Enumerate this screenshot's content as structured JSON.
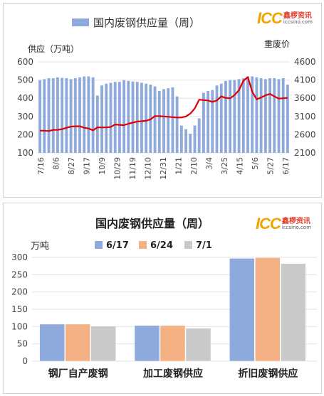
{
  "chart_data": [
    {
      "type": "bar+line",
      "legend": {
        "bar_label": "国内废钢供应量（周）",
        "position": "top"
      },
      "left_axis_title": "供应（万吨）",
      "right_axis_title": "重废价",
      "left_ticks": [
        "100",
        "200",
        "300",
        "400",
        "500",
        "600"
      ],
      "right_ticks": [
        "2100",
        "2600",
        "3100",
        "3600",
        "4100",
        "4600"
      ],
      "ylim_left": [
        100,
        600
      ],
      "ylim_right": [
        2100,
        4600
      ],
      "x_tick_labels": [
        "7/16",
        "8/6",
        "8/27",
        "9/17",
        "10/9",
        "10/29",
        "11/19",
        "12/10",
        "12/31",
        "1/21",
        "2/10",
        "3/4",
        "3/25",
        "4/15",
        "5/6",
        "5/27",
        "6/17"
      ],
      "bar_color": "#8ea9db",
      "line_color": "#e00000",
      "bar_values": [
        500,
        505,
        510,
        510,
        515,
        512,
        510,
        505,
        510,
        515,
        520,
        520,
        515,
        415,
        470,
        480,
        485,
        490,
        490,
        500,
        495,
        492,
        490,
        485,
        480,
        475,
        465,
        440,
        450,
        455,
        460,
        410,
        250,
        230,
        205,
        250,
        290,
        430,
        440,
        445,
        470,
        480,
        495,
        500,
        500,
        505,
        510,
        520,
        520,
        515,
        510,
        505,
        510,
        510,
        505,
        510,
        475
      ],
      "line_values": [
        2710,
        2710,
        2700,
        2730,
        2730,
        2750,
        2790,
        2820,
        2830,
        2830,
        2790,
        2770,
        2720,
        2800,
        2800,
        2800,
        2810,
        2880,
        2870,
        2860,
        2900,
        2930,
        2960,
        2970,
        2980,
        3020,
        3110,
        3110,
        3100,
        3090,
        3080,
        3070,
        3070,
        3100,
        3180,
        3320,
        3560,
        3550,
        3540,
        3500,
        3540,
        3650,
        3610,
        3600,
        3690,
        3820,
        4080,
        4180,
        3780,
        3570,
        3620,
        3680,
        3720,
        3650,
        3590,
        3600,
        3610
      ]
    },
    {
      "type": "bar",
      "title": "国内废钢供应量（周）",
      "unit_label": "万吨",
      "categories": [
        "钢厂自产废钢",
        "加工废钢供应",
        "折旧废钢供应"
      ],
      "series": [
        {
          "name": "6/17",
          "color": "#8ea9db",
          "values": [
            107,
            103,
            297
          ]
        },
        {
          "name": "6/24",
          "color": "#f4b183",
          "values": [
            107,
            103,
            299
          ]
        },
        {
          "name": "7/1",
          "color": "#c9c9c9",
          "values": [
            101,
            95,
            282
          ]
        }
      ],
      "ylim": [
        0,
        300
      ],
      "y_ticks": [
        "0",
        "50",
        "100",
        "150",
        "200",
        "250",
        "300"
      ]
    }
  ],
  "logo": {
    "brand": "ICC",
    "cn": "鑫椤资讯",
    "url": "iccsino.com"
  }
}
